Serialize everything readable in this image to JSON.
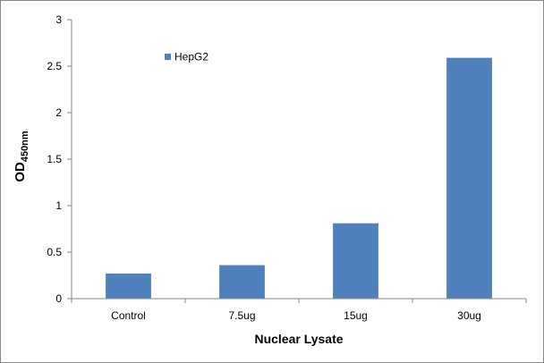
{
  "chart_data": {
    "type": "bar",
    "categories": [
      "Control",
      "7.5ug",
      "15ug",
      "30ug"
    ],
    "series": [
      {
        "name": "HepG2",
        "values": [
          0.27,
          0.36,
          0.81,
          2.59
        ],
        "color": "#4f81bd"
      }
    ],
    "xlabel": "Nuclear Lysate",
    "ylabel": {
      "main": "OD",
      "subscript": "450nm"
    },
    "ylim": [
      0,
      3
    ],
    "yticks": [
      {
        "value": 0,
        "label": "0"
      },
      {
        "value": 0.5,
        "label": "0.5"
      },
      {
        "value": 1,
        "label": "1"
      },
      {
        "value": 1.5,
        "label": "1.5"
      },
      {
        "value": 2,
        "label": "2"
      },
      {
        "value": 2.5,
        "label": "2.5"
      },
      {
        "value": 3,
        "label": "3"
      }
    ],
    "grid": false,
    "legend_position": "top-left"
  }
}
